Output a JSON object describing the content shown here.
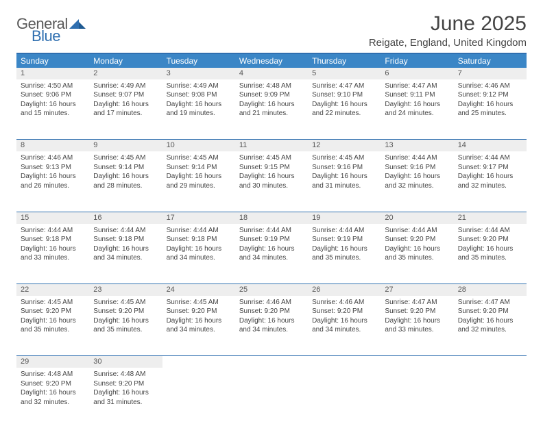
{
  "brand": {
    "general": "General",
    "blue": "Blue"
  },
  "title": "June 2025",
  "location": "Reigate, England, United Kingdom",
  "colors": {
    "header_bg": "#3b86c6",
    "border": "#2f6fb0",
    "daynum_bg": "#eeeeee",
    "text": "#444444"
  },
  "weekdays": [
    "Sunday",
    "Monday",
    "Tuesday",
    "Wednesday",
    "Thursday",
    "Friday",
    "Saturday"
  ],
  "weeks": [
    [
      {
        "n": "1",
        "sr": "Sunrise: 4:50 AM",
        "ss": "Sunset: 9:06 PM",
        "d1": "Daylight: 16 hours",
        "d2": "and 15 minutes."
      },
      {
        "n": "2",
        "sr": "Sunrise: 4:49 AM",
        "ss": "Sunset: 9:07 PM",
        "d1": "Daylight: 16 hours",
        "d2": "and 17 minutes."
      },
      {
        "n": "3",
        "sr": "Sunrise: 4:49 AM",
        "ss": "Sunset: 9:08 PM",
        "d1": "Daylight: 16 hours",
        "d2": "and 19 minutes."
      },
      {
        "n": "4",
        "sr": "Sunrise: 4:48 AM",
        "ss": "Sunset: 9:09 PM",
        "d1": "Daylight: 16 hours",
        "d2": "and 21 minutes."
      },
      {
        "n": "5",
        "sr": "Sunrise: 4:47 AM",
        "ss": "Sunset: 9:10 PM",
        "d1": "Daylight: 16 hours",
        "d2": "and 22 minutes."
      },
      {
        "n": "6",
        "sr": "Sunrise: 4:47 AM",
        "ss": "Sunset: 9:11 PM",
        "d1": "Daylight: 16 hours",
        "d2": "and 24 minutes."
      },
      {
        "n": "7",
        "sr": "Sunrise: 4:46 AM",
        "ss": "Sunset: 9:12 PM",
        "d1": "Daylight: 16 hours",
        "d2": "and 25 minutes."
      }
    ],
    [
      {
        "n": "8",
        "sr": "Sunrise: 4:46 AM",
        "ss": "Sunset: 9:13 PM",
        "d1": "Daylight: 16 hours",
        "d2": "and 26 minutes."
      },
      {
        "n": "9",
        "sr": "Sunrise: 4:45 AM",
        "ss": "Sunset: 9:14 PM",
        "d1": "Daylight: 16 hours",
        "d2": "and 28 minutes."
      },
      {
        "n": "10",
        "sr": "Sunrise: 4:45 AM",
        "ss": "Sunset: 9:14 PM",
        "d1": "Daylight: 16 hours",
        "d2": "and 29 minutes."
      },
      {
        "n": "11",
        "sr": "Sunrise: 4:45 AM",
        "ss": "Sunset: 9:15 PM",
        "d1": "Daylight: 16 hours",
        "d2": "and 30 minutes."
      },
      {
        "n": "12",
        "sr": "Sunrise: 4:45 AM",
        "ss": "Sunset: 9:16 PM",
        "d1": "Daylight: 16 hours",
        "d2": "and 31 minutes."
      },
      {
        "n": "13",
        "sr": "Sunrise: 4:44 AM",
        "ss": "Sunset: 9:16 PM",
        "d1": "Daylight: 16 hours",
        "d2": "and 32 minutes."
      },
      {
        "n": "14",
        "sr": "Sunrise: 4:44 AM",
        "ss": "Sunset: 9:17 PM",
        "d1": "Daylight: 16 hours",
        "d2": "and 32 minutes."
      }
    ],
    [
      {
        "n": "15",
        "sr": "Sunrise: 4:44 AM",
        "ss": "Sunset: 9:18 PM",
        "d1": "Daylight: 16 hours",
        "d2": "and 33 minutes."
      },
      {
        "n": "16",
        "sr": "Sunrise: 4:44 AM",
        "ss": "Sunset: 9:18 PM",
        "d1": "Daylight: 16 hours",
        "d2": "and 34 minutes."
      },
      {
        "n": "17",
        "sr": "Sunrise: 4:44 AM",
        "ss": "Sunset: 9:18 PM",
        "d1": "Daylight: 16 hours",
        "d2": "and 34 minutes."
      },
      {
        "n": "18",
        "sr": "Sunrise: 4:44 AM",
        "ss": "Sunset: 9:19 PM",
        "d1": "Daylight: 16 hours",
        "d2": "and 34 minutes."
      },
      {
        "n": "19",
        "sr": "Sunrise: 4:44 AM",
        "ss": "Sunset: 9:19 PM",
        "d1": "Daylight: 16 hours",
        "d2": "and 35 minutes."
      },
      {
        "n": "20",
        "sr": "Sunrise: 4:44 AM",
        "ss": "Sunset: 9:20 PM",
        "d1": "Daylight: 16 hours",
        "d2": "and 35 minutes."
      },
      {
        "n": "21",
        "sr": "Sunrise: 4:44 AM",
        "ss": "Sunset: 9:20 PM",
        "d1": "Daylight: 16 hours",
        "d2": "and 35 minutes."
      }
    ],
    [
      {
        "n": "22",
        "sr": "Sunrise: 4:45 AM",
        "ss": "Sunset: 9:20 PM",
        "d1": "Daylight: 16 hours",
        "d2": "and 35 minutes."
      },
      {
        "n": "23",
        "sr": "Sunrise: 4:45 AM",
        "ss": "Sunset: 9:20 PM",
        "d1": "Daylight: 16 hours",
        "d2": "and 35 minutes."
      },
      {
        "n": "24",
        "sr": "Sunrise: 4:45 AM",
        "ss": "Sunset: 9:20 PM",
        "d1": "Daylight: 16 hours",
        "d2": "and 34 minutes."
      },
      {
        "n": "25",
        "sr": "Sunrise: 4:46 AM",
        "ss": "Sunset: 9:20 PM",
        "d1": "Daylight: 16 hours",
        "d2": "and 34 minutes."
      },
      {
        "n": "26",
        "sr": "Sunrise: 4:46 AM",
        "ss": "Sunset: 9:20 PM",
        "d1": "Daylight: 16 hours",
        "d2": "and 34 minutes."
      },
      {
        "n": "27",
        "sr": "Sunrise: 4:47 AM",
        "ss": "Sunset: 9:20 PM",
        "d1": "Daylight: 16 hours",
        "d2": "and 33 minutes."
      },
      {
        "n": "28",
        "sr": "Sunrise: 4:47 AM",
        "ss": "Sunset: 9:20 PM",
        "d1": "Daylight: 16 hours",
        "d2": "and 32 minutes."
      }
    ],
    [
      {
        "n": "29",
        "sr": "Sunrise: 4:48 AM",
        "ss": "Sunset: 9:20 PM",
        "d1": "Daylight: 16 hours",
        "d2": "and 32 minutes."
      },
      {
        "n": "30",
        "sr": "Sunrise: 4:48 AM",
        "ss": "Sunset: 9:20 PM",
        "d1": "Daylight: 16 hours",
        "d2": "and 31 minutes."
      },
      null,
      null,
      null,
      null,
      null
    ]
  ]
}
